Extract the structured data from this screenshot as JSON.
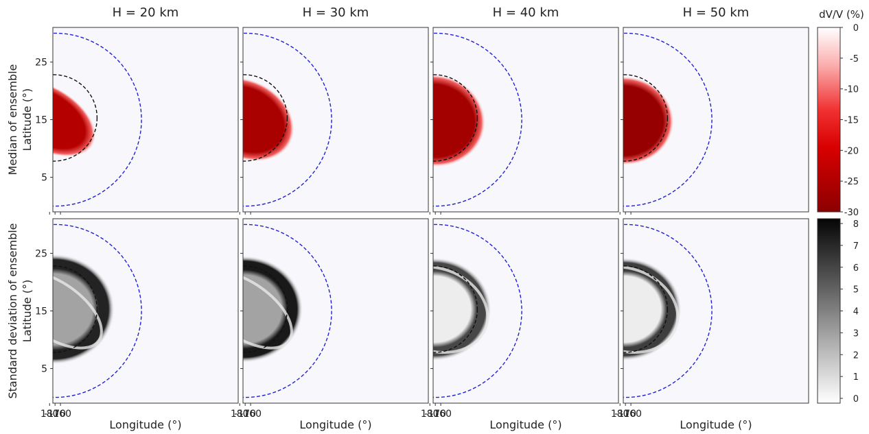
{
  "chart_data": {
    "type": "heatmap",
    "columns": [
      {
        "title": "H = 20 km",
        "median_core": -16,
        "median_ellipse": {
          "rx": 0.62,
          "ry": 0.36,
          "rot": 30,
          "cx": -0.12,
          "cy": 0.0
        },
        "std_inner": 3.0,
        "std_outer": 7.2,
        "std_band_extent": 0.62
      },
      {
        "title": "H = 30 km",
        "median_core": -20,
        "median_ellipse": {
          "rx": 0.58,
          "ry": 0.44,
          "rot": 28,
          "cx": 0.02,
          "cy": 0.02
        },
        "std_inner": 3.0,
        "std_outer": 7.5,
        "std_band_extent": 0.6
      },
      {
        "title": "H = 40 km",
        "median_core": -22,
        "median_ellipse": {
          "rx": 0.58,
          "ry": 0.52,
          "rot": 10,
          "cx": 0.0,
          "cy": 0.04
        },
        "std_inner": 0.6,
        "std_outer": 6.0,
        "std_band_extent": 0.58
      },
      {
        "title": "H = 50 km",
        "median_core": -26,
        "median_ellipse": {
          "rx": 0.56,
          "ry": 0.5,
          "rot": 5,
          "cx": 0.0,
          "cy": 0.04
        },
        "std_inner": 0.6,
        "std_outer": 6.3,
        "std_band_extent": 0.58
      }
    ],
    "rows": [
      {
        "label_line1": "Median of ensemble",
        "label_line2": "Latitude (°)"
      },
      {
        "label_line1": "Standard deviation of ensemble",
        "label_line2": "Latitude (°)"
      }
    ],
    "xlabel": "Longitude (°)",
    "x_ticks": [
      180,
      -170,
      -160
    ],
    "x_tick_labels": [
      "180",
      "-170",
      "-160"
    ],
    "x_range_lon": [
      186,
      -154
    ],
    "y_ticks": [
      5,
      15,
      25
    ],
    "y_tick_labels": [
      "5",
      "15",
      "25"
    ],
    "y_range": [
      -1,
      31
    ],
    "overlay_circles": [
      {
        "name": "outer",
        "center_lon": -170.2,
        "center_lat": 15.0,
        "radius_lat": 15.0,
        "color": "#1f1fd6",
        "style": "dashed"
      },
      {
        "name": "inner",
        "center_lon": -172.3,
        "center_lat": 15.3,
        "radius_lat": 7.5,
        "color": "#111111",
        "style": "dashed"
      }
    ],
    "colorbars": [
      {
        "title": "dV/V (%)",
        "colormap": "Reds_r",
        "range": [
          -30,
          0
        ],
        "ticks": [
          "0",
          "-5",
          "-10",
          "-15",
          "-20",
          "-25",
          "-30"
        ]
      },
      {
        "title": "",
        "colormap": "Greys",
        "range": [
          0,
          8
        ],
        "ticks": [
          "8",
          "7",
          "6",
          "5",
          "4",
          "3",
          "2",
          "1",
          "0"
        ]
      }
    ],
    "colors": {
      "background": "#f8f8fc",
      "median_base": "#e00000",
      "median_dark": "#8b0000",
      "std_dark": "#0a0a0a"
    }
  }
}
